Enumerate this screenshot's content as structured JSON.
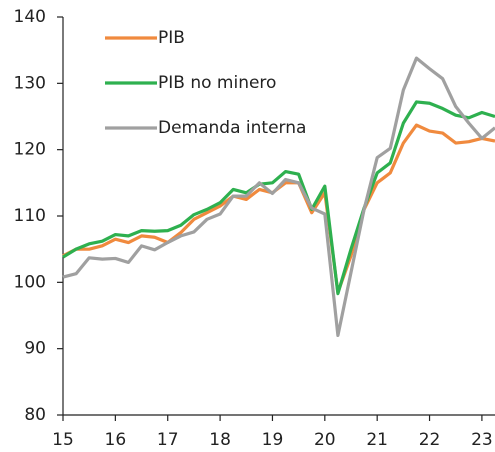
{
  "chart_data": {
    "type": "line",
    "x": [
      15,
      15.25,
      15.5,
      15.75,
      16,
      16.25,
      16.5,
      16.75,
      17,
      17.25,
      17.5,
      17.75,
      18,
      18.25,
      18.5,
      18.75,
      19,
      19.25,
      19.5,
      19.75,
      20,
      20.25,
      20.5,
      20.75,
      21,
      21.25,
      21.5,
      21.75,
      22,
      22.25,
      22.5,
      22.75,
      23,
      23.25
    ],
    "series": [
      {
        "name": "PIB",
        "color": "#f08a3e",
        "values": [
          104,
          105,
          105,
          105.5,
          106.5,
          106,
          107,
          106.8,
          106,
          107.5,
          109.5,
          110.5,
          111.5,
          113,
          112.5,
          114,
          113.5,
          115,
          115,
          110.5,
          113.5,
          98.5,
          104,
          111,
          115,
          116.5,
          121,
          123.7,
          122.8,
          122.5,
          121,
          121.2,
          121.7,
          121.3
        ]
      },
      {
        "name": "PIB no minero",
        "color": "#2eb04f",
        "values": [
          103.8,
          105,
          105.8,
          106.2,
          107.2,
          107,
          107.8,
          107.7,
          107.8,
          108.6,
          110.2,
          111,
          112,
          114,
          113.5,
          114.8,
          115,
          116.7,
          116.3,
          111,
          114.5,
          98.3,
          105,
          111.2,
          116.5,
          118,
          124,
          127.2,
          127,
          126.2,
          125.2,
          124.8,
          125.6,
          125
        ]
      },
      {
        "name": "Demanda interna",
        "color": "#a0a0a0",
        "values": [
          100.8,
          101.3,
          103.7,
          103.5,
          103.6,
          103,
          105.5,
          104.9,
          106,
          107,
          107.6,
          109.5,
          110.3,
          113,
          113,
          115,
          113.4,
          115.5,
          115,
          111.2,
          110.3,
          92,
          101.5,
          111,
          118.8,
          120.2,
          129,
          133.8,
          132.2,
          130.7,
          126.5,
          124,
          121.7,
          123.3
        ]
      }
    ],
    "xlim": [
      15,
      23.25
    ],
    "xticks": [
      15,
      16,
      17,
      18,
      19,
      20,
      21,
      22,
      23
    ],
    "ylim": [
      80,
      140
    ],
    "yticks": [
      80,
      90,
      100,
      110,
      120,
      130,
      140
    ],
    "legend": "upper left"
  }
}
